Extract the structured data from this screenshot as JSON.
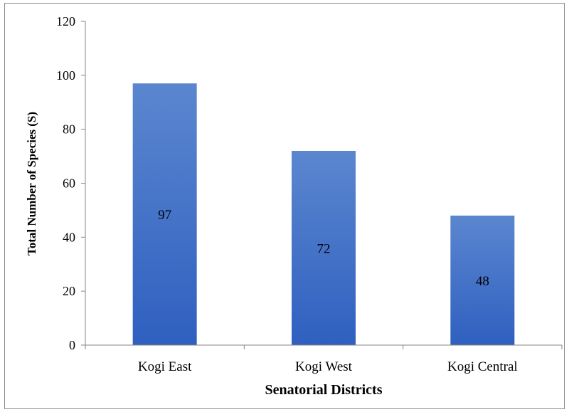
{
  "chart_data": {
    "type": "bar",
    "categories": [
      "Kogi East",
      "Kogi West",
      "Kogi Central"
    ],
    "values": [
      97,
      72,
      48
    ],
    "data_labels": [
      "97",
      "72",
      "48"
    ],
    "title": "",
    "xlabel": "Senatorial Districts",
    "ylabel": "Total Number of Species (S)",
    "ylim": [
      0,
      120
    ],
    "yticks": [
      0,
      20,
      40,
      60,
      80,
      100,
      120
    ],
    "grid": false,
    "legend": "none",
    "bar_color_top": "#5b86cf",
    "bar_color_bottom": "#2f60c0",
    "axis_color": "#868686"
  }
}
